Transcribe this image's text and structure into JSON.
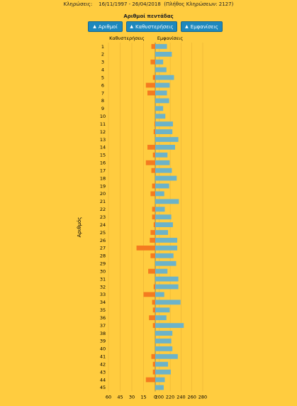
{
  "header": {
    "draws_label": "Κληρώσεις:",
    "date_range": "16/11/1997 - 26/04/2018",
    "draws_count": "(Πλήθος Κληρώσεων: 2127)"
  },
  "panel_title": "Αριθμοί πεντάδας",
  "buttons": [
    {
      "label": "Αριθμοί",
      "icon": "sort-up-icon"
    },
    {
      "label": "Καθυστερήσεις",
      "icon": "sort-up-icon"
    },
    {
      "label": "Εμφανίσεις",
      "icon": "sort-up-icon"
    }
  ],
  "colors": {
    "background": "#ffcc3f",
    "delays": "#f47b20",
    "appearances": "#6cb3c9",
    "button": "#1d88bd"
  },
  "chart_data": {
    "type": "bar",
    "orientation": "horizontal-diverging",
    "ylabel": "Αριθμός",
    "left_header": "Καθυστερήσεις",
    "right_header": "Εμφανίσεις",
    "left_ticks": [
      "60",
      "45",
      "30",
      "15",
      "0"
    ],
    "right_ticks": [
      "200",
      "220",
      "240",
      "260",
      "280"
    ],
    "left_range": [
      0,
      60
    ],
    "right_range": [
      195,
      280
    ],
    "categories": [
      "1",
      "2",
      "3",
      "4",
      "5",
      "6",
      "7",
      "8",
      "9",
      "10",
      "11",
      "12",
      "13",
      "14",
      "15",
      "16",
      "17",
      "18",
      "19",
      "20",
      "21",
      "22",
      "23",
      "24",
      "25",
      "26",
      "27",
      "28",
      "29",
      "30",
      "31",
      "32",
      "33",
      "34",
      "35",
      "36",
      "37",
      "38",
      "39",
      "40",
      "41",
      "42",
      "43",
      "44",
      "45"
    ],
    "series": [
      {
        "name": "Καθυστερήσεις",
        "side": "left",
        "values": [
          5,
          0,
          6,
          0,
          3,
          12,
          10,
          0,
          0,
          0,
          1,
          2,
          0,
          10,
          3,
          12,
          5,
          0,
          4,
          6,
          0,
          4,
          4,
          2,
          6,
          7,
          24,
          6,
          0,
          9,
          0,
          2,
          15,
          4,
          3,
          8,
          3,
          0,
          0,
          0,
          5,
          3,
          3,
          12,
          0
        ]
      },
      {
        "name": "Εμφανίσεις",
        "side": "right",
        "values": [
          214,
          223,
          207,
          213,
          227,
          219,
          214,
          218,
          207,
          211,
          225,
          224,
          235,
          229,
          215,
          219,
          223,
          232,
          218,
          209,
          236,
          210,
          222,
          225,
          216,
          233,
          233,
          226,
          231,
          215,
          235,
          235,
          209,
          239,
          219,
          213,
          245,
          224,
          222,
          224,
          234,
          216,
          221,
          210,
          208
        ]
      }
    ]
  }
}
